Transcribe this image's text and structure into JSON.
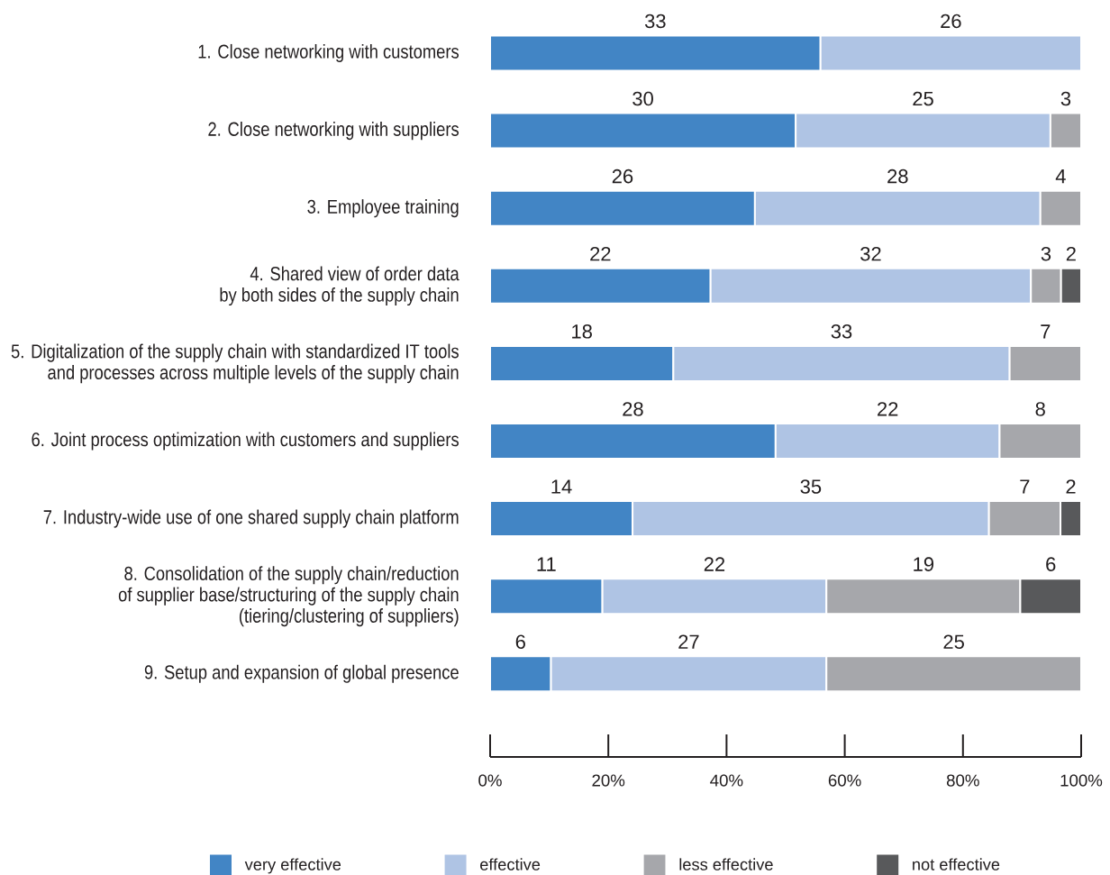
{
  "chart_data": {
    "type": "bar",
    "orientation": "horizontal",
    "stacked": true,
    "categories": [
      "1. Close networking with customers",
      "2. Close networking with suppliers",
      "3. Employee training",
      "4. Shared view of order data\nby both sides of the supply chain",
      "5. Digitalization of the supply chain with standardized IT tools\nand processes across multiple levels of the supply chain",
      "6. Joint process optimization with customers and suppliers",
      "7. Industry-wide use of one shared supply chain platform",
      "8. Consolidation of the supply chain/reduction\nof supplier base/structuring of the supply chain\n(tiering/clustering of suppliers)",
      "9. Setup and expansion of global presence"
    ],
    "series": [
      {
        "name": "very effective",
        "color": "#4285c5",
        "values": [
          55.9,
          51.7,
          44.8,
          37.3,
          31.0,
          48.3,
          24.1,
          19.0,
          10.3
        ]
      },
      {
        "name": "effective",
        "color": "#afc4e4",
        "values": [
          44.1,
          43.1,
          48.3,
          54.2,
          56.9,
          37.9,
          60.3,
          37.9,
          46.6
        ]
      },
      {
        "name": "less effective",
        "color": "#a6a7ab",
        "values": [
          null,
          5.2,
          6.9,
          5.1,
          12.1,
          13.8,
          12.1,
          32.8,
          43.1
        ]
      },
      {
        "name": "not effective",
        "color": "#58595b",
        "values": [
          null,
          null,
          null,
          3.4,
          null,
          null,
          3.5,
          10.3,
          null
        ]
      }
    ],
    "xlim": [
      0,
      100
    ],
    "xticks": [
      {
        "value": 0,
        "label": "0%"
      },
      {
        "value": 20,
        "label": "20%"
      },
      {
        "value": 40,
        "label": "40%"
      },
      {
        "value": 60,
        "label": "60%"
      },
      {
        "value": 80,
        "label": "80%"
      },
      {
        "value": 100,
        "label": "100%"
      }
    ],
    "legend": "bottom",
    "annotations": [
      "33",
      "26",
      "30",
      "25",
      "3",
      "26",
      "28",
      "4",
      "22",
      "32",
      "3",
      "2",
      "18",
      "33",
      "7",
      "28",
      "22",
      "8",
      "14",
      "35",
      "7",
      "2",
      "11",
      "22",
      "19",
      "6",
      "6",
      "27",
      "25"
    ]
  }
}
